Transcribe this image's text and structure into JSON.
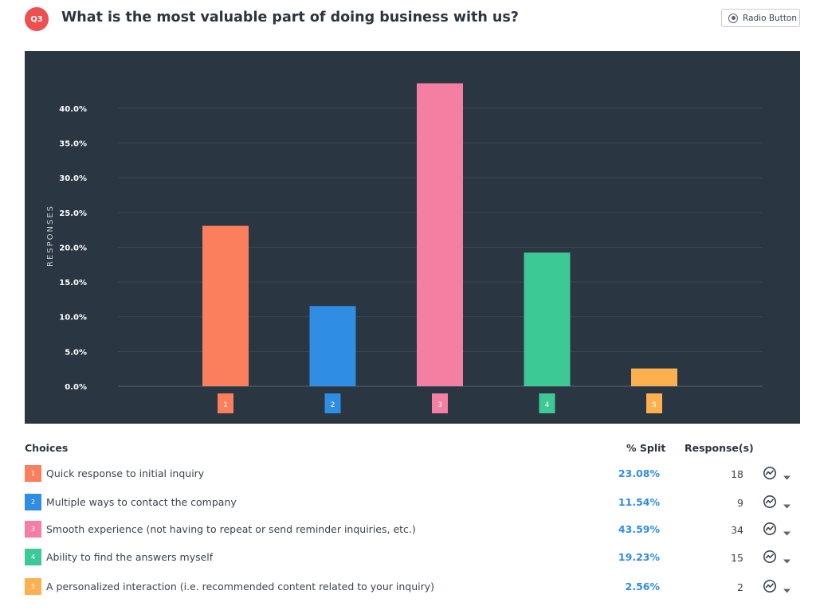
{
  "question": {
    "badge": "Q3",
    "title": "What is the most valuable part of doing business with us?",
    "type_label": "Radio Button"
  },
  "colors": {
    "background_panel": "#2a3641",
    "badge": "#ee4f4f",
    "split_text": "#2f8de4"
  },
  "chart_data": {
    "type": "bar",
    "ylabel": "RESPONSES",
    "xlabel": "",
    "categories": [
      "1",
      "2",
      "3",
      "4",
      "5"
    ],
    "values": [
      23.08,
      11.54,
      43.59,
      19.23,
      2.56
    ],
    "colors": [
      "#fb7f5c",
      "#2f8de4",
      "#f47fa3",
      "#3dc995",
      "#fdb04f"
    ],
    "yticks": [
      "0.0%",
      "5.0%",
      "10.0%",
      "15.0%",
      "20.0%",
      "25.0%",
      "30.0%",
      "35.0%",
      "40.0%"
    ],
    "ylim": [
      0,
      44
    ],
    "grid": true
  },
  "table": {
    "headers": {
      "choices": "Choices",
      "split": "% Split",
      "responses": "Response(s)"
    },
    "rows": [
      {
        "num": "1",
        "label": "Quick response to initial inquiry",
        "split": "23.08%",
        "count": "18",
        "color": "#fb7f5c"
      },
      {
        "num": "2",
        "label": "Multiple ways to contact the company",
        "split": "11.54%",
        "count": "9",
        "color": "#2f8de4"
      },
      {
        "num": "3",
        "label": "Smooth experience (not having to repeat or send reminder inquiries, etc.)",
        "split": "43.59%",
        "count": "34",
        "color": "#f47fa3"
      },
      {
        "num": "4",
        "label": "Ability to find the answers myself",
        "split": "19.23%",
        "count": "15",
        "color": "#3dc995"
      },
      {
        "num": "5",
        "label": "A personalized interaction (i.e. recommended content related to your inquiry)",
        "split": "2.56%",
        "count": "2",
        "color": "#fdb04f"
      }
    ],
    "row_icon": "analytics-chart-icon",
    "row_caret_icon": "caret-down-icon"
  }
}
